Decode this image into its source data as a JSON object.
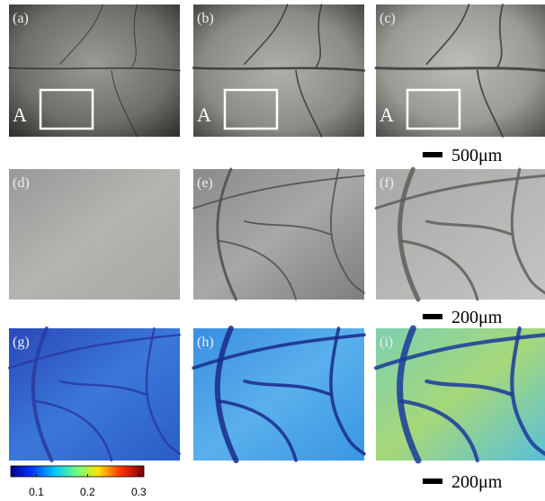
{
  "panels": [
    {
      "label": "(a)",
      "inset_label": "A"
    },
    {
      "label": "(b)",
      "inset_label": "A"
    },
    {
      "label": "(c)",
      "inset_label": "A"
    },
    {
      "label": "(d)"
    },
    {
      "label": "(e)"
    },
    {
      "label": "(f)"
    },
    {
      "label": "(g)"
    },
    {
      "label": "(h)"
    },
    {
      "label": "(i)"
    }
  ],
  "scale_bars": [
    "500μm",
    "200μm",
    "200μm"
  ],
  "colorbar": {
    "lim": [
      0.05,
      0.31
    ],
    "ticks": [
      0.1,
      0.2,
      0.3
    ]
  }
}
